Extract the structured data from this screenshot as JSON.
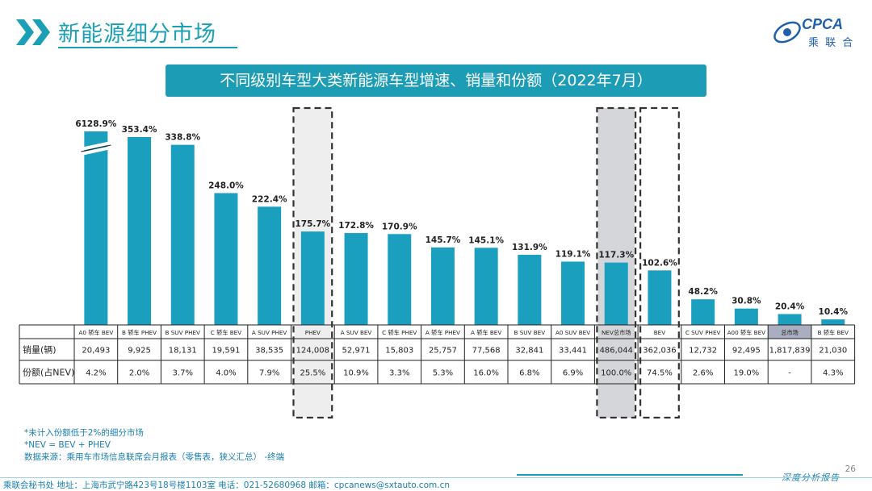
{
  "header": {
    "section_title": "新能源细分市场",
    "logo_text": "CPCA",
    "logo_cn": "乘 联 合"
  },
  "banner": {
    "title": "不同级别车型大类新能源车型增速、销量和份额（2022年7月）"
  },
  "chart_data": {
    "type": "bar",
    "categories": [
      "A0 轿车 BEV",
      "B 轿车 PHEV",
      "B SUV PHEV",
      "C 轿车 BEV",
      "A SUV PHEV",
      "PHEV",
      "A SUV BEV",
      "C 轿车 PHEV",
      "A 轿车 PHEV",
      "A 轿车 BEV",
      "B SUV BEV",
      "A0 SUV BEV",
      "NEV总市场",
      "BEV",
      "C SUV PHEV",
      "A00 轿车 BEV",
      "总市场",
      "B 轿车 BEV"
    ],
    "values": [
      6128.9,
      353.4,
      338.8,
      248.0,
      222.4,
      175.7,
      172.8,
      170.9,
      145.7,
      145.1,
      131.9,
      119.1,
      117.3,
      102.6,
      48.2,
      30.8,
      20.4,
      10.4
    ],
    "value_labels": [
      "6128.9%",
      "353.4%",
      "338.8%",
      "248.0%",
      "222.4%",
      "175.7%",
      "172.8%",
      "170.9%",
      "145.7%",
      "145.1%",
      "131.9%",
      "119.1%",
      "117.3%",
      "102.6%",
      "48.2%",
      "30.8%",
      "20.4%",
      "10.4%"
    ],
    "axis_break_index": 0,
    "highlighted_columns": [
      "PHEV",
      "NEV总市场",
      "BEV"
    ],
    "shaded_columns": [
      "PHEV",
      "NEV总市场"
    ],
    "gray_header_columns": [
      "总市场"
    ],
    "bar_color": "#1a9fbf",
    "table": {
      "row_labels": [
        "销量(辆)",
        "份额(占NEV)"
      ],
      "sales": [
        "20,493",
        "9,925",
        "18,131",
        "19,591",
        "38,535",
        "124,008",
        "52,971",
        "15,803",
        "25,757",
        "77,568",
        "32,841",
        "33,441",
        "486,044",
        "362,036",
        "12,732",
        "92,495",
        "1,817,839",
        "21,030"
      ],
      "share": [
        "4.2%",
        "2.0%",
        "3.7%",
        "4.0%",
        "7.9%",
        "25.5%",
        "10.9%",
        "3.3%",
        "5.3%",
        "16.0%",
        "6.8%",
        "6.9%",
        "100.0%",
        "74.5%",
        "2.6%",
        "19.0%",
        "-",
        "4.3%"
      ]
    }
  },
  "notes": [
    "*未计入份额低于2%的细分市场",
    "*NEV = BEV + PHEV",
    "数据来源：乘用车市场信息联席会月报表（零售表，狭义汇总）  -终端"
  ],
  "footer": {
    "contact": "乘联会秘书处    地址：上海市武宁路423号18号楼1103室    电话：021-52680968    邮箱：cpcanews@sxtauto.com.cn",
    "tagline": "深度分析报告",
    "page_number": "26"
  }
}
